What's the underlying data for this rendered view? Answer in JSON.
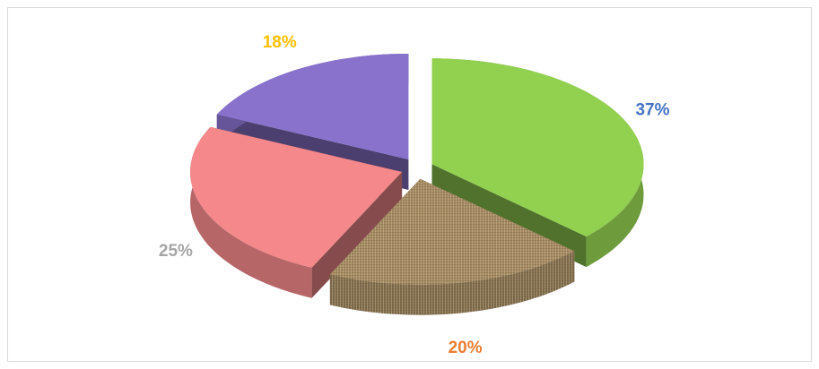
{
  "chart_data": {
    "type": "pie",
    "values": [
      37,
      20,
      25,
      18
    ],
    "value_labels": [
      "37%",
      "20%",
      "25%",
      "18%"
    ],
    "colors": [
      "#92d050",
      "#a48a62",
      "#f4888a",
      "#8872cc"
    ],
    "label_colors": [
      "#4472c4",
      "#ed7d31",
      "#a5a5a5",
      "#ffc000"
    ],
    "three_d": true,
    "exploded": true
  }
}
